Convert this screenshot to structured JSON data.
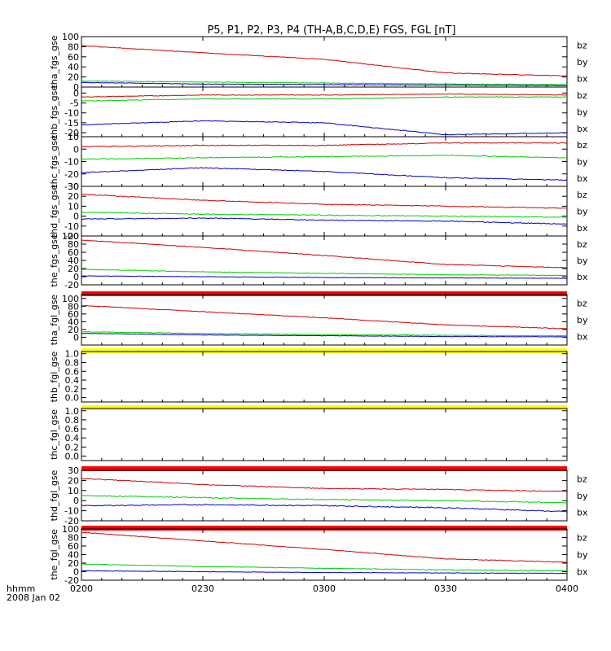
{
  "title": "P5, P1, P2, P3, P4 (TH-A,B,C,D,E) FGS, FGL [nT]",
  "time_label_line1": "hhmm",
  "time_label_line2": "2008 Jan 02",
  "colors": {
    "bz": "#d00000",
    "by": "#00d000",
    "bx": "#0000c8",
    "red_bar": "#ff0000",
    "yellow_bar": "#ffff00"
  },
  "chart_data": [
    {
      "type": "line",
      "ylabel": "tha_fgs_gse",
      "ylim": [
        0,
        100
      ],
      "yticks": [
        0,
        20,
        40,
        60,
        80,
        100
      ],
      "legend": [
        "bz",
        "by",
        "bx"
      ],
      "x": [
        "0200",
        "0230",
        "0300",
        "0330",
        "0400"
      ],
      "series": [
        {
          "name": "bz",
          "values": [
            82,
            68,
            55,
            28,
            22
          ],
          "noise": 0.6
        },
        {
          "name": "by",
          "values": [
            12,
            10,
            8,
            6,
            5
          ],
          "noise": 0.5
        },
        {
          "name": "bx",
          "values": [
            9,
            6,
            5,
            4,
            3
          ],
          "noise": 0.4
        }
      ]
    },
    {
      "type": "line",
      "ylabel": "thb_fgs_gse",
      "ylim": [
        -22,
        3
      ],
      "yticks": [
        -20,
        -15,
        -10,
        -5,
        0
      ],
      "legend": [
        "bz",
        "by",
        "bx"
      ],
      "x": [
        "0200",
        "0230",
        "0300",
        "0330",
        "0400"
      ],
      "series": [
        {
          "name": "bz",
          "values": [
            -2,
            -1,
            -1,
            -0.5,
            -1
          ],
          "noise": 0.6
        },
        {
          "name": "by",
          "values": [
            -4,
            -3,
            -3,
            -2,
            -2
          ],
          "noise": 0.6
        },
        {
          "name": "bx",
          "values": [
            -16,
            -14,
            -15,
            -21,
            -20
          ],
          "noise": 0.7
        }
      ]
    },
    {
      "type": "line",
      "ylabel": "thc_fgs_gse",
      "ylim": [
        -30,
        10
      ],
      "yticks": [
        -30,
        -20,
        -10,
        0,
        10
      ],
      "legend": [
        "bz",
        "by",
        "bx"
      ],
      "x": [
        "0200",
        "0230",
        "0300",
        "0330",
        "0400"
      ],
      "series": [
        {
          "name": "bz",
          "values": [
            2,
            3,
            3,
            5,
            5
          ],
          "noise": 0.8
        },
        {
          "name": "by",
          "values": [
            -8,
            -7,
            -6,
            -5,
            -7
          ],
          "noise": 0.8
        },
        {
          "name": "bx",
          "values": [
            -19,
            -15,
            -18,
            -23,
            -25
          ],
          "noise": 0.8
        }
      ]
    },
    {
      "type": "line",
      "ylabel": "thd_fgs_gse",
      "ylim": [
        -20,
        30
      ],
      "yticks": [
        -20,
        -10,
        0,
        10,
        20,
        30
      ],
      "legend": [
        "bz",
        "by",
        "bx"
      ],
      "x": [
        "0200",
        "0230",
        "0300",
        "0330",
        "0400"
      ],
      "series": [
        {
          "name": "bz",
          "values": [
            22,
            16,
            12,
            10,
            8
          ],
          "noise": 0.8
        },
        {
          "name": "by",
          "values": [
            4,
            2,
            1,
            0,
            -1
          ],
          "noise": 0.8
        },
        {
          "name": "bx",
          "values": [
            -3,
            -2,
            -4,
            -5,
            -8
          ],
          "noise": 0.8
        }
      ]
    },
    {
      "type": "line",
      "ylabel": "the_fgs_gse",
      "ylim": [
        -20,
        100
      ],
      "yticks": [
        -20,
        0,
        20,
        40,
        60,
        80,
        100
      ],
      "legend": [
        "bz",
        "by",
        "bx"
      ],
      "x": [
        "0200",
        "0230",
        "0300",
        "0330",
        "0400"
      ],
      "series": [
        {
          "name": "bz",
          "values": [
            90,
            72,
            52,
            30,
            22
          ],
          "noise": 0.6
        },
        {
          "name": "by",
          "values": [
            18,
            12,
            8,
            5,
            3
          ],
          "noise": 0.5
        },
        {
          "name": "bx",
          "values": [
            2,
            0,
            -2,
            -3,
            -4
          ],
          "noise": 0.4
        }
      ]
    },
    {
      "type": "line",
      "ylabel": "tha_fgl_gse",
      "ylim": [
        -20,
        110
      ],
      "yticks": [
        0,
        20,
        40,
        60,
        80,
        100
      ],
      "legend": [
        "bz",
        "by",
        "bx"
      ],
      "bar_above": "red",
      "x": [
        "0200",
        "0230",
        "0300",
        "0330",
        "0400"
      ],
      "series": [
        {
          "name": "bz",
          "values": [
            82,
            66,
            50,
            32,
            22
          ],
          "noise": 0.6
        },
        {
          "name": "by",
          "values": [
            14,
            10,
            7,
            5,
            4
          ],
          "noise": 0.5
        },
        {
          "name": "bx",
          "values": [
            10,
            6,
            4,
            2,
            1
          ],
          "noise": 0.4
        }
      ]
    },
    {
      "type": "line",
      "ylabel": "thb_fgl_gse",
      "ylim": [
        -0.1,
        1.05
      ],
      "yticks": [
        0.0,
        0.2,
        0.4,
        0.6,
        0.8,
        1.0
      ],
      "legend": [],
      "bar_above": "yellow",
      "x": [
        "0200",
        "0230",
        "0300",
        "0330",
        "0400"
      ],
      "series": []
    },
    {
      "type": "line",
      "ylabel": "thc_fgl_gse",
      "ylim": [
        -0.1,
        1.05
      ],
      "yticks": [
        0.0,
        0.2,
        0.4,
        0.6,
        0.8,
        1.0
      ],
      "legend": [],
      "bar_above": "yellow",
      "x": [
        "0200",
        "0230",
        "0300",
        "0330",
        "0400"
      ],
      "series": []
    },
    {
      "type": "line",
      "ylabel": "thd_fgl_gse",
      "ylim": [
        -20,
        30
      ],
      "yticks": [
        -20,
        -10,
        0,
        10,
        20,
        30
      ],
      "legend": [
        "bz",
        "by",
        "bx"
      ],
      "bar_above": "red",
      "x": [
        "0200",
        "0230",
        "0300",
        "0330",
        "0400"
      ],
      "series": [
        {
          "name": "bz",
          "values": [
            22,
            16,
            12,
            11,
            9
          ],
          "noise": 0.8
        },
        {
          "name": "by",
          "values": [
            5,
            3,
            1,
            0,
            -2
          ],
          "noise": 1.0
        },
        {
          "name": "bx",
          "values": [
            -5,
            -4,
            -5,
            -7,
            -11
          ],
          "noise": 1.0
        }
      ]
    },
    {
      "type": "line",
      "ylabel": "the_fgl_gse",
      "ylim": [
        -20,
        100
      ],
      "yticks": [
        -20,
        0,
        20,
        40,
        60,
        80,
        100
      ],
      "legend": [
        "bz",
        "by",
        "bx"
      ],
      "bar_above": "red",
      "x": [
        "0200",
        "0230",
        "0300",
        "0330",
        "0400"
      ],
      "series": [
        {
          "name": "bz",
          "values": [
            92,
            72,
            52,
            30,
            22
          ],
          "noise": 0.6
        },
        {
          "name": "by",
          "values": [
            18,
            12,
            8,
            4,
            2
          ],
          "noise": 0.5
        },
        {
          "name": "bx",
          "values": [
            2,
            0,
            -2,
            -3,
            -4
          ],
          "noise": 0.4
        }
      ]
    }
  ]
}
